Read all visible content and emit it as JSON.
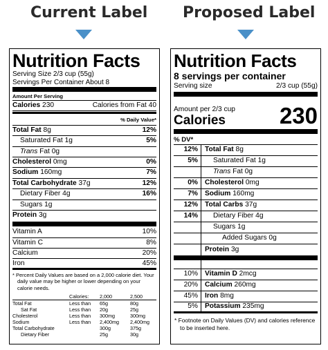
{
  "headers": {
    "current": "Current Label",
    "proposed": "Proposed Label",
    "arrow_color": "#4a90c8"
  },
  "current": {
    "title": "Nutrition Facts",
    "serving_size": "Serving Size 2/3 cup (55g)",
    "servings_per_container": "Servings Per Container About 8",
    "amount_per_serving": "Amount Per Serving",
    "calories_label": "Calories",
    "calories_value": "230",
    "calories_from_fat": "Calories from Fat 40",
    "daily_value_head": "% Daily Value*",
    "rows": [
      {
        "label": "Total Fat",
        "amount": "8g",
        "pct": "12%",
        "bold": true,
        "indent": false
      },
      {
        "label": "Saturated Fat",
        "amount": "1g",
        "pct": "5%",
        "bold": false,
        "indent": true
      },
      {
        "label": "Trans",
        "label_suffix": "Fat",
        "amount": "0g",
        "pct": "",
        "bold": false,
        "indent": true
      },
      {
        "label": "Cholesterol",
        "amount": "0mg",
        "pct": "0%",
        "bold": true,
        "indent": false
      },
      {
        "label": "Sodium",
        "amount": "160mg",
        "pct": "7%",
        "bold": true,
        "indent": false
      },
      {
        "label": "Total Carbohydrate",
        "amount": "37g",
        "pct": "12%",
        "bold": true,
        "indent": false
      },
      {
        "label": "Dietary Fiber",
        "amount": "4g",
        "pct": "16%",
        "bold": false,
        "indent": true
      },
      {
        "label": "Sugars",
        "amount": "1g",
        "pct": "",
        "bold": false,
        "indent": true
      },
      {
        "label": "Protein",
        "amount": "3g",
        "pct": "",
        "bold": true,
        "indent": false
      }
    ],
    "vitamins": [
      {
        "label": "Vitamin A",
        "pct": "10%"
      },
      {
        "label": "Vitamin C",
        "pct": "8%"
      },
      {
        "label": "Calcium",
        "pct": "20%"
      },
      {
        "label": "Iron",
        "pct": "45%"
      }
    ],
    "footnote": "* Percent Daily Values are based on a 2,000 calorie diet. Your daily value may be higher or lower depending on your calorie needs.",
    "table_header": [
      "",
      "Calories:",
      "2,000",
      "2,500"
    ],
    "table_rows": [
      [
        "Total Fat",
        "Less than",
        "65g",
        "80g"
      ],
      [
        "Sat Fat",
        "Less than",
        "20g",
        "25g"
      ],
      [
        "Cholesterol",
        "Less than",
        "300mg",
        "300mg"
      ],
      [
        "Sodium",
        "Less than",
        "2,400mg",
        "2,400mg"
      ],
      [
        "Total Carbohydrate",
        "",
        "300g",
        "375g"
      ],
      [
        "Dietary Fiber",
        "",
        "25g",
        "30g"
      ]
    ]
  },
  "proposed": {
    "title": "Nutrition Facts",
    "servings": "8 servings per container",
    "serving_size_label": "Serving size",
    "serving_size_value": "2/3 cup (55g)",
    "amount_per": "Amount per 2/3 cup",
    "calories_label": "Calories",
    "calories_value": "230",
    "dv_head": "% DV*",
    "rows": [
      {
        "pct": "12%",
        "label": "Total Fat",
        "amount": "8g",
        "bold": true,
        "indent": 0
      },
      {
        "pct": "5%",
        "label": "Saturated Fat",
        "amount": "1g",
        "bold": false,
        "indent": 1
      },
      {
        "pct": "",
        "label": "Trans",
        "label_suffix": "Fat",
        "amount": "0g",
        "bold": false,
        "indent": 1
      },
      {
        "pct": "0%",
        "label": "Cholesterol",
        "amount": "0mg",
        "bold": true,
        "indent": 0
      },
      {
        "pct": "7%",
        "label": "Sodium",
        "amount": "160mg",
        "bold": true,
        "indent": 0
      },
      {
        "pct": "12%",
        "label": "Total Carbs",
        "amount": "37g",
        "bold": true,
        "indent": 0
      },
      {
        "pct": "14%",
        "label": "Dietary Fiber",
        "amount": "4g",
        "bold": false,
        "indent": 1
      },
      {
        "pct": "",
        "label": "Sugars",
        "amount": "1g",
        "bold": false,
        "indent": 1
      },
      {
        "pct": "",
        "label": "Added Sugars",
        "amount": "0g",
        "bold": false,
        "indent": 2
      },
      {
        "pct": "",
        "label": "Protein",
        "amount": "3g",
        "bold": true,
        "indent": 0
      }
    ],
    "vitamins": [
      {
        "pct": "10%",
        "label": "Vitamin D",
        "amount": "2mcg"
      },
      {
        "pct": "20%",
        "label": "Calcium",
        "amount": "260mg"
      },
      {
        "pct": "45%",
        "label": "Iron",
        "amount": "8mg"
      },
      {
        "pct": "5%",
        "label": "Potassium",
        "amount": "235mg"
      }
    ],
    "footnote": "* Footnote on Daily Values (DV) and calories reference to be inserted here."
  }
}
